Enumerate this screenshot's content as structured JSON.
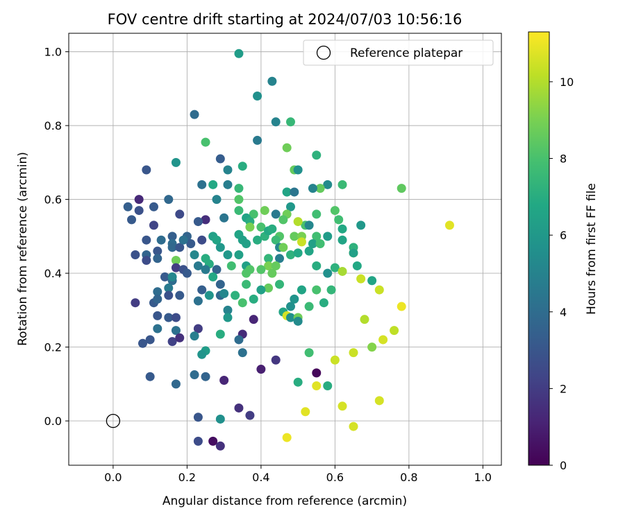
{
  "chart_data": {
    "type": "scatter",
    "title": "FOV centre drift starting at 2024/07/03 10:56:16",
    "xlabel": "Angular distance from reference (arcmin)",
    "ylabel": "Rotation from reference (arcmin)",
    "xlim": [
      -0.12,
      1.05
    ],
    "ylim": [
      -0.12,
      1.05
    ],
    "xticks": [
      "0.0",
      "0.2",
      "0.4",
      "0.6",
      "0.8",
      "1.0"
    ],
    "yticks": [
      "0.0",
      "0.2",
      "0.4",
      "0.6",
      "0.8",
      "1.0"
    ],
    "grid": true,
    "legend": {
      "placement": "top-right",
      "entries": [
        "Reference platepar"
      ]
    },
    "reference_point": {
      "x": 0.0,
      "y": 0.0,
      "marker": "open-circle"
    },
    "colorbar": {
      "label": "Hours from first FF file",
      "min": 0,
      "max": 11.3,
      "ticks": [
        "0",
        "2",
        "4",
        "6",
        "8",
        "10"
      ],
      "colormap": "viridis"
    },
    "points": [
      [
        0.34,
        0.995,
        6.2
      ],
      [
        0.43,
        0.92,
        5.0
      ],
      [
        0.22,
        0.83,
        4.0
      ],
      [
        0.39,
        0.88,
        5.6
      ],
      [
        0.44,
        0.81,
        5.0
      ],
      [
        0.48,
        0.81,
        7.5
      ],
      [
        0.39,
        0.76,
        4.6
      ],
      [
        0.25,
        0.755,
        8.0
      ],
      [
        0.47,
        0.74,
        8.8
      ],
      [
        0.29,
        0.71,
        3.3
      ],
      [
        0.17,
        0.7,
        5.8
      ],
      [
        0.55,
        0.72,
        7.2
      ],
      [
        0.35,
        0.69,
        7.0
      ],
      [
        0.09,
        0.68,
        3.0
      ],
      [
        0.31,
        0.68,
        5.0
      ],
      [
        0.49,
        0.68,
        8.6
      ],
      [
        0.5,
        0.68,
        5.6
      ],
      [
        0.24,
        0.64,
        4.2
      ],
      [
        0.27,
        0.64,
        6.8
      ],
      [
        0.31,
        0.64,
        4.8
      ],
      [
        0.58,
        0.64,
        5.4
      ],
      [
        0.62,
        0.64,
        7.6
      ],
      [
        0.56,
        0.63,
        8.6
      ],
      [
        0.47,
        0.62,
        7.2
      ],
      [
        0.47,
        0.62,
        6.6
      ],
      [
        0.49,
        0.62,
        4.4
      ],
      [
        0.54,
        0.63,
        5.0
      ],
      [
        0.78,
        0.63,
        8.5
      ],
      [
        0.34,
        0.63,
        7.5
      ],
      [
        0.34,
        0.6,
        8.2
      ],
      [
        0.07,
        0.6,
        1.3
      ],
      [
        0.15,
        0.6,
        3.8
      ],
      [
        0.28,
        0.6,
        5.0
      ],
      [
        0.38,
        0.56,
        8.0
      ],
      [
        0.41,
        0.57,
        8.8
      ],
      [
        0.44,
        0.56,
        4.6
      ],
      [
        0.48,
        0.58,
        6.0
      ],
      [
        0.04,
        0.58,
        3.4
      ],
      [
        0.11,
        0.58,
        3.2
      ],
      [
        0.34,
        0.57,
        7.6
      ],
      [
        0.6,
        0.57,
        8.2
      ],
      [
        0.07,
        0.57,
        2.8
      ],
      [
        0.25,
        0.545,
        1.5
      ],
      [
        0.3,
        0.55,
        4.4
      ],
      [
        0.36,
        0.55,
        6.6
      ],
      [
        0.37,
        0.54,
        7.0
      ],
      [
        0.47,
        0.56,
        8.8
      ],
      [
        0.52,
        0.53,
        8.0
      ],
      [
        0.55,
        0.56,
        7.8
      ],
      [
        0.18,
        0.56,
        2.5
      ],
      [
        0.05,
        0.545,
        3.2
      ],
      [
        0.23,
        0.54,
        3.2
      ],
      [
        0.46,
        0.545,
        8.2
      ],
      [
        0.61,
        0.545,
        7.8
      ],
      [
        0.62,
        0.52,
        6.8
      ],
      [
        0.11,
        0.53,
        2.3
      ],
      [
        0.5,
        0.54,
        10.0
      ],
      [
        0.53,
        0.53,
        5.2
      ],
      [
        0.67,
        0.53,
        6.0
      ],
      [
        0.91,
        0.53,
        10.8
      ],
      [
        0.37,
        0.525,
        9.0
      ],
      [
        0.4,
        0.525,
        8.0
      ],
      [
        0.16,
        0.5,
        3.4
      ],
      [
        0.2,
        0.5,
        3.6
      ],
      [
        0.27,
        0.5,
        6.4
      ],
      [
        0.34,
        0.505,
        6.6
      ],
      [
        0.41,
        0.5,
        7.2
      ],
      [
        0.42,
        0.515,
        6.8
      ],
      [
        0.43,
        0.52,
        7.0
      ],
      [
        0.45,
        0.5,
        8.2
      ],
      [
        0.49,
        0.5,
        8.6
      ],
      [
        0.51,
        0.5,
        9.0
      ],
      [
        0.55,
        0.5,
        7.8
      ],
      [
        0.58,
        0.5,
        6.2
      ],
      [
        0.09,
        0.49,
        3.0
      ],
      [
        0.13,
        0.49,
        4.0
      ],
      [
        0.21,
        0.48,
        3.2
      ],
      [
        0.28,
        0.49,
        6.6
      ],
      [
        0.35,
        0.49,
        6.4
      ],
      [
        0.39,
        0.49,
        7.0
      ],
      [
        0.44,
        0.49,
        7.6
      ],
      [
        0.51,
        0.485,
        10.4
      ],
      [
        0.62,
        0.49,
        6.6
      ],
      [
        0.16,
        0.48,
        4.0
      ],
      [
        0.24,
        0.49,
        2.6
      ],
      [
        0.36,
        0.48,
        6.4
      ],
      [
        0.45,
        0.47,
        5.2
      ],
      [
        0.46,
        0.47,
        8.8
      ],
      [
        0.54,
        0.48,
        6.4
      ],
      [
        0.56,
        0.48,
        7.8
      ],
      [
        0.65,
        0.47,
        7.2
      ],
      [
        0.65,
        0.455,
        10.8
      ],
      [
        0.06,
        0.45,
        2.8
      ],
      [
        0.09,
        0.45,
        3.6
      ],
      [
        0.12,
        0.46,
        3.0
      ],
      [
        0.16,
        0.47,
        3.8
      ],
      [
        0.18,
        0.47,
        3.0
      ],
      [
        0.19,
        0.49,
        4.2
      ],
      [
        0.22,
        0.45,
        5.2
      ],
      [
        0.25,
        0.44,
        7.0
      ],
      [
        0.29,
        0.47,
        6.0
      ],
      [
        0.31,
        0.45,
        6.0
      ],
      [
        0.34,
        0.45,
        6.4
      ],
      [
        0.42,
        0.44,
        7.4
      ],
      [
        0.45,
        0.44,
        4.8
      ],
      [
        0.48,
        0.45,
        7.2
      ],
      [
        0.5,
        0.455,
        6.8
      ],
      [
        0.53,
        0.46,
        6.6
      ],
      [
        0.65,
        0.455,
        6.4
      ],
      [
        0.09,
        0.435,
        2.6
      ],
      [
        0.12,
        0.44,
        3.6
      ],
      [
        0.17,
        0.435,
        8.8
      ],
      [
        0.26,
        0.425,
        7.0
      ],
      [
        0.32,
        0.42,
        7.8
      ],
      [
        0.36,
        0.42,
        6.4
      ],
      [
        0.37,
        0.41,
        8.2
      ],
      [
        0.42,
        0.42,
        9.0
      ],
      [
        0.44,
        0.42,
        8.6
      ],
      [
        0.55,
        0.42,
        7.0
      ],
      [
        0.6,
        0.415,
        7.2
      ],
      [
        0.66,
        0.42,
        6.8
      ],
      [
        0.17,
        0.415,
        2.0
      ],
      [
        0.19,
        0.41,
        2.8
      ],
      [
        0.23,
        0.42,
        4.6
      ],
      [
        0.25,
        0.41,
        4.6
      ],
      [
        0.28,
        0.41,
        3.6
      ],
      [
        0.2,
        0.4,
        3.2
      ],
      [
        0.43,
        0.4,
        8.6
      ],
      [
        0.36,
        0.4,
        8.2
      ],
      [
        0.4,
        0.41,
        8.2
      ],
      [
        0.58,
        0.4,
        5.6
      ],
      [
        0.62,
        0.405,
        9.8
      ],
      [
        0.14,
        0.39,
        3.2
      ],
      [
        0.16,
        0.38,
        4.0
      ],
      [
        0.16,
        0.39,
        5.2
      ],
      [
        0.27,
        0.39,
        6.8
      ],
      [
        0.36,
        0.37,
        7.6
      ],
      [
        0.42,
        0.36,
        8.6
      ],
      [
        0.45,
        0.37,
        7.4
      ],
      [
        0.59,
        0.355,
        7.4
      ],
      [
        0.67,
        0.385,
        10.4
      ],
      [
        0.7,
        0.38,
        6.6
      ],
      [
        0.12,
        0.35,
        4.0
      ],
      [
        0.15,
        0.36,
        4.6
      ],
      [
        0.24,
        0.355,
        3.4
      ],
      [
        0.29,
        0.37,
        3.6
      ],
      [
        0.4,
        0.355,
        6.4
      ],
      [
        0.51,
        0.355,
        6.6
      ],
      [
        0.55,
        0.355,
        8.0
      ],
      [
        0.72,
        0.355,
        10.4
      ],
      [
        0.15,
        0.34,
        2.8
      ],
      [
        0.18,
        0.34,
        3.2
      ],
      [
        0.26,
        0.34,
        5.8
      ],
      [
        0.29,
        0.34,
        3.8
      ],
      [
        0.3,
        0.345,
        5.2
      ],
      [
        0.33,
        0.34,
        7.2
      ],
      [
        0.06,
        0.32,
        2.0
      ],
      [
        0.11,
        0.32,
        3.2
      ],
      [
        0.12,
        0.33,
        3.6
      ],
      [
        0.23,
        0.325,
        4.2
      ],
      [
        0.35,
        0.32,
        8.0
      ],
      [
        0.38,
        0.33,
        7.0
      ],
      [
        0.49,
        0.33,
        5.8
      ],
      [
        0.57,
        0.32,
        7.0
      ],
      [
        0.78,
        0.31,
        11.0
      ],
      [
        0.31,
        0.3,
        5.0
      ],
      [
        0.46,
        0.295,
        6.6
      ],
      [
        0.48,
        0.31,
        5.6
      ],
      [
        0.53,
        0.31,
        7.6
      ],
      [
        0.15,
        0.28,
        3.2
      ],
      [
        0.12,
        0.285,
        3.0
      ],
      [
        0.17,
        0.28,
        2.6
      ],
      [
        0.31,
        0.28,
        6.0
      ],
      [
        0.38,
        0.275,
        1.2
      ],
      [
        0.47,
        0.285,
        10.6
      ],
      [
        0.48,
        0.28,
        5.6
      ],
      [
        0.5,
        0.28,
        8.8
      ],
      [
        0.5,
        0.27,
        5.4
      ],
      [
        0.68,
        0.275,
        10.0
      ],
      [
        0.12,
        0.25,
        4.2
      ],
      [
        0.17,
        0.245,
        4.2
      ],
      [
        0.23,
        0.25,
        2.0
      ],
      [
        0.29,
        0.235,
        7.0
      ],
      [
        0.35,
        0.235,
        1.4
      ],
      [
        0.73,
        0.22,
        10.6
      ],
      [
        0.76,
        0.245,
        10.2
      ],
      [
        0.1,
        0.22,
        3.0
      ],
      [
        0.16,
        0.215,
        2.2
      ],
      [
        0.18,
        0.225,
        1.6
      ],
      [
        0.22,
        0.23,
        4.8
      ],
      [
        0.34,
        0.22,
        4.0
      ],
      [
        0.08,
        0.21,
        3.0
      ],
      [
        0.25,
        0.19,
        6.2
      ],
      [
        0.35,
        0.185,
        4.2
      ],
      [
        0.53,
        0.185,
        7.8
      ],
      [
        0.65,
        0.185,
        10.4
      ],
      [
        0.7,
        0.2,
        9.2
      ],
      [
        0.24,
        0.18,
        5.8
      ],
      [
        0.44,
        0.165,
        1.8
      ],
      [
        0.6,
        0.165,
        10.4
      ],
      [
        0.1,
        0.12,
        3.2
      ],
      [
        0.17,
        0.1,
        3.8
      ],
      [
        0.22,
        0.125,
        4.0
      ],
      [
        0.25,
        0.12,
        3.6
      ],
      [
        0.3,
        0.11,
        1.2
      ],
      [
        0.4,
        0.14,
        1.0
      ],
      [
        0.5,
        0.105,
        7.0
      ],
      [
        0.55,
        0.13,
        0.2
      ],
      [
        0.55,
        0.095,
        10.8
      ],
      [
        0.58,
        0.095,
        7.0
      ],
      [
        0.34,
        0.035,
        1.6
      ],
      [
        0.37,
        0.015,
        2.0
      ],
      [
        0.23,
        0.01,
        3.0
      ],
      [
        0.29,
        0.005,
        5.6
      ],
      [
        0.52,
        0.025,
        10.8
      ],
      [
        0.62,
        0.04,
        10.6
      ],
      [
        0.72,
        0.055,
        10.6
      ],
      [
        0.65,
        -0.015,
        10.6
      ],
      [
        0.23,
        -0.055,
        2.6
      ],
      [
        0.27,
        -0.055,
        0.4
      ],
      [
        0.29,
        -0.068,
        1.6
      ],
      [
        0.47,
        -0.045,
        11.0
      ]
    ]
  }
}
